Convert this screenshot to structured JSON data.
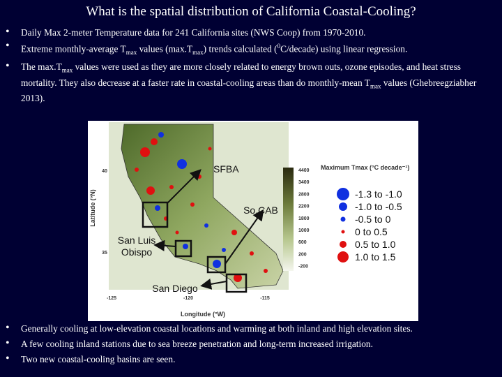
{
  "title": "What is the spatial distribution of California Coastal-Cooling?",
  "bullets_top": [
    [
      "Daily Max 2-meter Temperature data for 241 California sites (NWS Coop) from 1970-2010."
    ],
    [
      "Extreme monthly-average T",
      {
        "sub": "max"
      },
      " values (max.T",
      {
        "sub": "max"
      },
      ") trends calculated (",
      {
        "sup": "0"
      },
      "C/decade) using linear regression."
    ],
    [
      "The max.T",
      {
        "sub": "max"
      },
      " values were used as they are more closely related to energy brown outs, ozone episodes, and heat stress mortality.  They also decrease at a faster rate in coastal-cooling areas than do monthly-mean T",
      {
        "sub": "max"
      },
      " values (Ghebreegziabher 2013)."
    ]
  ],
  "map": {
    "y_axis_label": "Latitude (°N)",
    "x_axis_label": "Longitude (°W)",
    "y_tick_labels": [
      "40",
      "35"
    ],
    "x_tick_labels": [
      "-125",
      "-120",
      "-115"
    ],
    "regions": [
      "SFBA",
      "So.CAB",
      "San Luis Obispo",
      "San Diego"
    ],
    "legend_title": "Maximum Tmax (°C decade⁻¹)",
    "legend": [
      "-1.3 to -1.0",
      "-1.0 to -0.5",
      "-0.5 to 0",
      "0 to 0.5",
      "0.5 to 1.0",
      "1.0 to 1.5"
    ],
    "elevation_labels": [
      "4400",
      "3400",
      "2800",
      "2200",
      "1800",
      "1000",
      "600",
      "200",
      "-200"
    ]
  },
  "bullets_bottom": [
    [
      "Generally cooling at low-elevation coastal locations and warming at both inland and high elevation sites."
    ],
    [
      "A few cooling inland stations due to sea breeze penetration and long-term increased irrigation."
    ],
    [
      "Two new coastal-cooling basins are seen."
    ]
  ]
}
